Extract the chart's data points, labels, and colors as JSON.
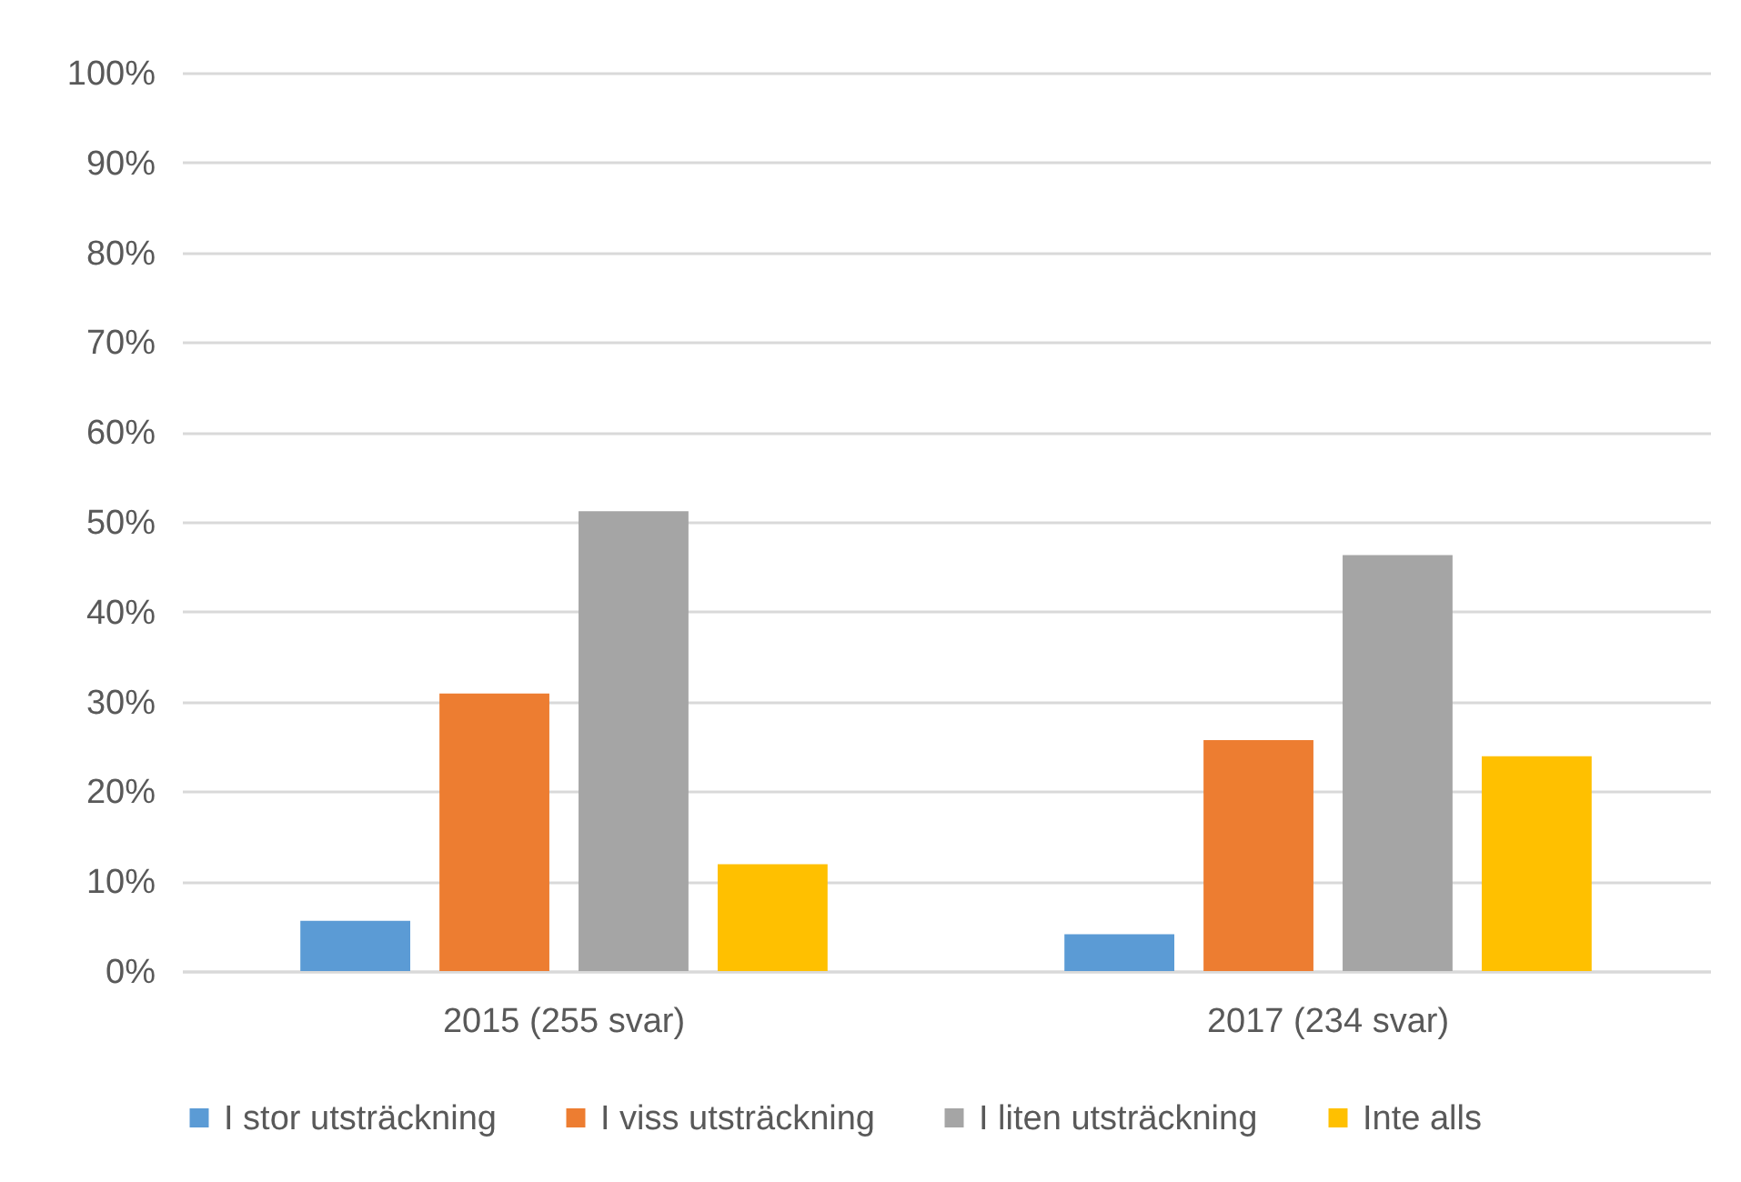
{
  "chart_data": {
    "type": "bar",
    "categories": [
      "2015 (255 svar)",
      "2017 (234 svar)"
    ],
    "series": [
      {
        "name": "I stor utsträckning",
        "color": "#5b9bd5",
        "values": [
          5.6,
          4.1
        ]
      },
      {
        "name": "I viss utsträckning",
        "color": "#ed7d31",
        "values": [
          30.9,
          25.7
        ]
      },
      {
        "name": "I liten utsträckning",
        "color": "#a5a5a5",
        "values": [
          51.2,
          46.3
        ]
      },
      {
        "name": "Inte alls",
        "color": "#ffc000",
        "values": [
          11.9,
          23.9
        ]
      }
    ],
    "ylim": [
      0,
      100
    ],
    "yticks": [
      {
        "value": 0,
        "label": "0%"
      },
      {
        "value": 10,
        "label": "10%"
      },
      {
        "value": 20,
        "label": "20%"
      },
      {
        "value": 30,
        "label": "30%"
      },
      {
        "value": 40,
        "label": "40%"
      },
      {
        "value": 50,
        "label": "50%"
      },
      {
        "value": 60,
        "label": "60%"
      },
      {
        "value": 70,
        "label": "70%"
      },
      {
        "value": 80,
        "label": "80%"
      },
      {
        "value": 90,
        "label": "90%"
      },
      {
        "value": 100,
        "label": "100%"
      }
    ],
    "grid": "y",
    "legend": "bottom"
  }
}
